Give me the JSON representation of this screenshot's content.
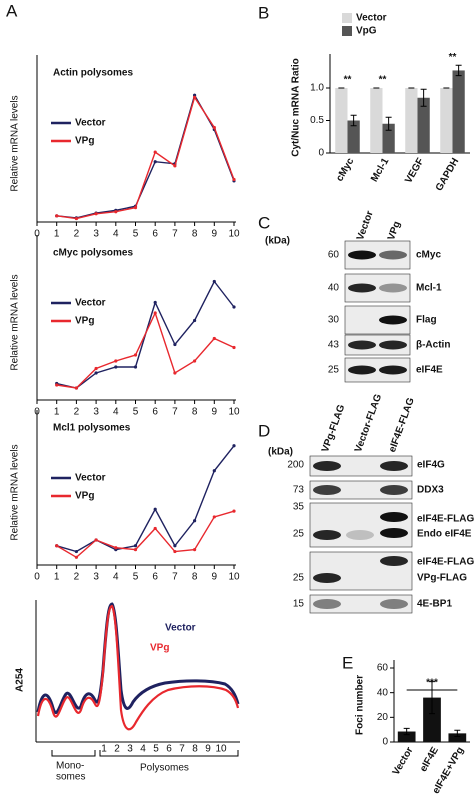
{
  "panel_labels": [
    "A",
    "B",
    "C",
    "D",
    "E"
  ],
  "chart_data": [
    {
      "type": "line",
      "title": "Actin polysomes",
      "y_label": "Relative mRNA levels",
      "x": [
        1,
        2,
        3,
        4,
        5,
        6,
        7,
        8,
        9,
        10
      ],
      "xlim": [
        0,
        10
      ],
      "xticks": [
        0,
        1,
        2,
        3,
        4,
        5,
        6,
        7,
        8,
        9,
        10
      ],
      "ylim": [
        0,
        20
      ],
      "series": [
        {
          "name": "Vector",
          "color": "#1f2260",
          "values": [
            0.9,
            0.6,
            1.3,
            1.7,
            2.3,
            8.8,
            8.5,
            18.5,
            13.5,
            6.0
          ]
        },
        {
          "name": "VPg",
          "color": "#e8282e",
          "values": [
            0.9,
            0.5,
            1.2,
            1.5,
            2.1,
            10.2,
            8.2,
            18.2,
            13.8,
            6.2
          ]
        }
      ]
    },
    {
      "type": "line",
      "title": "cMyc polysomes",
      "y_label": "Relative mRNA levels",
      "x": [
        1,
        2,
        3,
        4,
        5,
        6,
        7,
        8,
        9,
        10
      ],
      "xlim": [
        0,
        10
      ],
      "xticks": [
        0,
        1,
        2,
        3,
        4,
        5,
        6,
        7,
        8,
        9,
        10
      ],
      "ylim": [
        0,
        9
      ],
      "series": [
        {
          "name": "Vector",
          "color": "#1f2260",
          "values": [
            1.1,
            0.8,
            1.8,
            2.2,
            2.2,
            6.5,
            3.7,
            5.3,
            7.9,
            6.2
          ]
        },
        {
          "name": "VPg",
          "color": "#e8282e",
          "values": [
            1.0,
            0.8,
            2.1,
            2.6,
            3.0,
            5.8,
            1.8,
            2.6,
            4.1,
            3.5
          ]
        }
      ]
    },
    {
      "type": "line",
      "title": "Mcl1 polysomes",
      "y_label": "Relative mRNA levels",
      "x": [
        1,
        2,
        3,
        4,
        5,
        6,
        7,
        8,
        9,
        10
      ],
      "xlim": [
        0,
        10
      ],
      "xticks": [
        0,
        1,
        2,
        3,
        4,
        5,
        6,
        7,
        8,
        9,
        10
      ],
      "ylim": [
        0,
        6.5
      ],
      "series": [
        {
          "name": "Vector",
          "color": "#1f2260",
          "values": [
            1.0,
            0.7,
            1.3,
            0.8,
            1.0,
            2.9,
            1.0,
            2.3,
            4.9,
            6.2
          ]
        },
        {
          "name": "VPg",
          "color": "#e8282e",
          "values": [
            1.0,
            0.4,
            1.3,
            0.9,
            0.8,
            1.9,
            0.7,
            0.8,
            2.5,
            2.8
          ]
        }
      ]
    },
    {
      "type": "bar",
      "y_label": "Cyt/Nuc mRNA Ratio",
      "categories": [
        "cMyc",
        "Mcl-1",
        "VEGF",
        "GAPDH"
      ],
      "ylim": [
        0,
        1.4
      ],
      "yticks": [
        0,
        0.5,
        {
          "value": 1,
          "label": "1.0"
        }
      ],
      "series": [
        {
          "name": "Vector",
          "color": "#d9d9d9",
          "values": [
            1,
            1,
            1,
            1
          ],
          "errors": [
            0,
            0,
            0,
            0
          ]
        },
        {
          "name": "VpG",
          "color": "#555555",
          "values": [
            0.5,
            0.45,
            0.85,
            1.27
          ],
          "errors": [
            0.08,
            0.1,
            0.13,
            0.08
          ]
        }
      ],
      "significance": [
        "**",
        "**",
        null,
        "**"
      ]
    },
    {
      "type": "bar",
      "y_label": "Foci number",
      "categories": [
        "Vector",
        "eIF4E",
        "eIF4E+VPg"
      ],
      "values": [
        8.5,
        36,
        7
      ],
      "errors": [
        2.5,
        13,
        2.5
      ],
      "color": "#111111",
      "ylim": [
        0,
        60
      ],
      "yticks": [
        0,
        20,
        40,
        60
      ],
      "annotation": "***"
    }
  ],
  "profile": {
    "y_label": "A254",
    "legend": [
      "Vector",
      "VPg"
    ],
    "fractions": [
      "1",
      "2",
      "3",
      "4",
      "5",
      "6",
      "7",
      "8",
      "9",
      "10"
    ],
    "monosomes": [
      "Mono-",
      "somes"
    ],
    "polysomes": "Polysomes"
  },
  "blot_c": {
    "unit": "(kDa)",
    "lanes": [
      "Vector",
      "VPg"
    ],
    "rows": [
      {
        "kda": "60",
        "label": "cMyc"
      },
      {
        "kda": "40",
        "label": "Mcl-1"
      },
      {
        "kda": "30",
        "label": "Flag"
      },
      {
        "kda": "43",
        "label": "β-Actin"
      },
      {
        "kda": "25",
        "label": "eIF4E"
      }
    ]
  },
  "blot_d": {
    "unit": "(kDa)",
    "lanes": [
      "VPg-FLAG",
      "Vector-FLAG",
      "eIF4E-FLAG"
    ],
    "rows": [
      {
        "kda": [
          "200"
        ],
        "labels": [
          "eIF4G"
        ]
      },
      {
        "kda": [
          "73"
        ],
        "labels": [
          "DDX3"
        ]
      },
      {
        "kda": [
          "35",
          "25"
        ],
        "labels": [
          "eIF4E-FLAG",
          "Endo eIF4E"
        ]
      },
      {
        "kda": [
          "25"
        ],
        "labels": [
          "eIF4E-FLAG",
          "VPg-FLAG"
        ]
      },
      {
        "kda": [
          "15"
        ],
        "labels": [
          "4E-BP1"
        ]
      }
    ]
  }
}
